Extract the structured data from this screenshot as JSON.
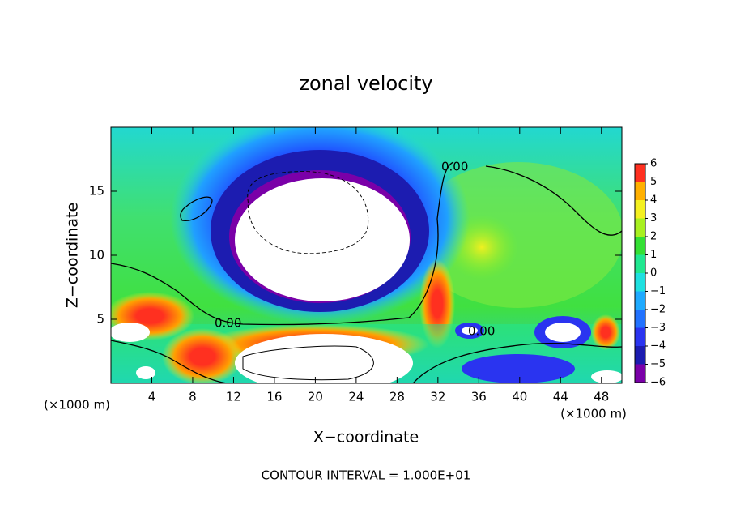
{
  "chart_data": {
    "type": "contour",
    "title": "zonal velocity",
    "x_label": "X−coordinate",
    "y_label": "Z−coordinate",
    "x_unit_labels": [
      "(×1000 m)",
      "(×1000 m)"
    ],
    "footer": "CONTOUR INTERVAL = 1.000E+01",
    "contour_labels": [
      "0.00",
      "0.00",
      "0.00"
    ],
    "xlim": [
      0,
      50
    ],
    "xticks": [
      4,
      8,
      12,
      16,
      20,
      24,
      28,
      32,
      36,
      40,
      44,
      48
    ],
    "ylim": [
      0,
      20
    ],
    "yticks": [
      5,
      10,
      15
    ],
    "colorbar": {
      "levels": [
        -6,
        -5,
        -4,
        -3,
        -2,
        -1,
        0,
        1,
        2,
        3,
        4,
        5,
        6
      ],
      "level_labels": [
        {
          "value": -6,
          "label": "−6"
        },
        {
          "value": -5,
          "label": "−5"
        },
        {
          "value": -4,
          "label": "−4"
        },
        {
          "value": -3,
          "label": "−3"
        },
        {
          "value": -2,
          "label": "−2"
        },
        {
          "value": -1,
          "label": "−1"
        },
        0,
        1,
        2,
        3,
        4,
        5,
        6
      ],
      "colors": [
        "#7a00a8",
        "#1c1cb0",
        "#2a34f0",
        "#2272ff",
        "#1eaaff",
        "#1ee0e0",
        "#20e890",
        "#34e034",
        "#a8f020",
        "#f4f020",
        "#ffb000",
        "#ff3020",
        "#ff9090"
      ]
    }
  }
}
